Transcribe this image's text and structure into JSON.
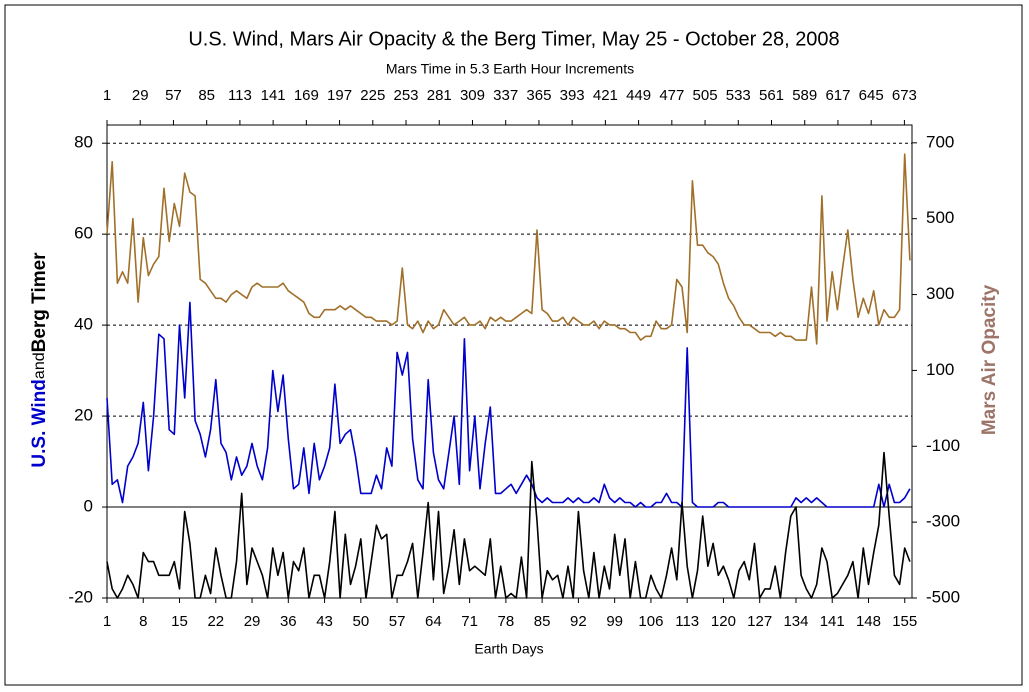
{
  "chart_data": {
    "type": "line",
    "title": "U.S. Wind, Mars Air Opacity & the Berg Timer, May 25 - October 28, 2008",
    "subtitle": "Mars Time in 5.3 Earth Hour Increments",
    "x_label": "Earth Days",
    "y_label": [
      "U.S. Wind",
      "and",
      "Berg Timer"
    ],
    "y2_label": "Mars Air Opacity",
    "xlim": [
      1,
      156.4
    ],
    "xticks": [
      1,
      8,
      15,
      22,
      29,
      36,
      43,
      50,
      57,
      64,
      71,
      78,
      85,
      92,
      99,
      106,
      113,
      120,
      127,
      134,
      141,
      148,
      155
    ],
    "x2lim": [
      1,
      679.4
    ],
    "x2ticks": [
      1,
      29,
      57,
      85,
      113,
      141,
      169,
      197,
      225,
      253,
      281,
      309,
      337,
      365,
      393,
      421,
      449,
      477,
      505,
      533,
      561,
      589,
      617,
      645,
      673
    ],
    "ylim": [
      -20,
      84
    ],
    "yticks": [
      -20,
      0,
      20,
      40,
      60,
      80
    ],
    "y2lim": [
      -500,
      747
    ],
    "y2ticks": [
      -500,
      -300,
      -100,
      100,
      300,
      500,
      700
    ],
    "grid": true,
    "x": [
      1,
      2,
      3,
      4,
      5,
      6,
      7,
      8,
      9,
      10,
      11,
      12,
      13,
      14,
      15,
      16,
      17,
      18,
      19,
      20,
      21,
      22,
      23,
      24,
      25,
      26,
      27,
      28,
      29,
      30,
      31,
      32,
      33,
      34,
      35,
      36,
      37,
      38,
      39,
      40,
      41,
      42,
      43,
      44,
      45,
      46,
      47,
      48,
      49,
      50,
      51,
      52,
      53,
      54,
      55,
      56,
      57,
      58,
      59,
      60,
      61,
      62,
      63,
      64,
      65,
      66,
      67,
      68,
      69,
      70,
      71,
      72,
      73,
      74,
      75,
      76,
      77,
      78,
      79,
      80,
      81,
      82,
      83,
      84,
      85,
      86,
      87,
      88,
      89,
      90,
      91,
      92,
      93,
      94,
      95,
      96,
      97,
      98,
      99,
      100,
      101,
      102,
      103,
      104,
      105,
      106,
      107,
      108,
      109,
      110,
      111,
      112,
      113,
      114,
      115,
      116,
      117,
      118,
      119,
      120,
      121,
      122,
      123,
      124,
      125,
      126,
      127,
      128,
      129,
      130,
      131,
      132,
      133,
      134,
      135,
      136,
      137,
      138,
      139,
      140,
      141,
      142,
      143,
      144,
      145,
      146,
      147,
      148,
      149,
      150,
      151,
      152,
      153,
      154,
      155,
      156
    ],
    "series": [
      {
        "color": "#a0702a",
        "axis": "y2",
        "values": [
          460,
          650,
          330,
          360,
          330,
          500,
          280,
          450,
          350,
          380,
          400,
          580,
          440,
          540,
          480,
          620,
          570,
          560,
          340,
          330,
          310,
          290,
          290,
          280,
          300,
          310,
          300,
          290,
          320,
          330,
          320,
          320,
          320,
          320,
          330,
          310,
          300,
          290,
          280,
          250,
          240,
          240,
          260,
          260,
          260,
          270,
          260,
          270,
          260,
          250,
          240,
          240,
          230,
          230,
          230,
          220,
          230,
          370,
          220,
          210,
          230,
          200,
          230,
          210,
          220,
          260,
          240,
          220,
          230,
          240,
          220,
          220,
          230,
          210,
          240,
          230,
          240,
          230,
          230,
          240,
          250,
          260,
          250,
          470,
          260,
          250,
          230,
          230,
          240,
          220,
          240,
          230,
          220,
          220,
          230,
          210,
          230,
          220,
          220,
          210,
          210,
          200,
          200,
          180,
          190,
          190,
          230,
          210,
          210,
          220,
          340,
          320,
          200,
          600,
          430,
          430,
          410,
          400,
          380,
          330,
          290,
          270,
          240,
          220,
          220,
          210,
          200,
          200,
          200,
          190,
          200,
          190,
          190,
          180,
          180,
          180,
          320,
          170,
          560,
          230,
          360,
          260,
          370,
          470,
          340,
          240,
          290,
          250,
          310,
          220,
          260,
          240,
          240,
          260,
          670,
          390
        ]
      },
      {
        "color": "#0000cc",
        "values": [
          24,
          5,
          6,
          1,
          9,
          11,
          14,
          23,
          8,
          20,
          38,
          37,
          17,
          16,
          40,
          24,
          45,
          19,
          16,
          11,
          17,
          28,
          14,
          12,
          6,
          11,
          7,
          9,
          14,
          9,
          6,
          13,
          30,
          21,
          29,
          15,
          4,
          5,
          13,
          3,
          14,
          6,
          9,
          13,
          27,
          14,
          16,
          17,
          11,
          3,
          3,
          3,
          7,
          4,
          13,
          9,
          34,
          29,
          34,
          15,
          6,
          4,
          28,
          12,
          6,
          4,
          12,
          20,
          5,
          37,
          8,
          20,
          4,
          14,
          22,
          3,
          3,
          4,
          5,
          3,
          5,
          7,
          5,
          2,
          1,
          2,
          1,
          1,
          1,
          2,
          1,
          2,
          1,
          1,
          2,
          1,
          5,
          2,
          1,
          2,
          1,
          1,
          0,
          1,
          0,
          0,
          1,
          1,
          3,
          1,
          1,
          0,
          35,
          1,
          0,
          0,
          0,
          0,
          1,
          1,
          0,
          0,
          0,
          0,
          0,
          0,
          0,
          0,
          0,
          0,
          0,
          0,
          0,
          2,
          1,
          2,
          1,
          2,
          1,
          0,
          0,
          0,
          0,
          0,
          0,
          0,
          0,
          0,
          0,
          5,
          0,
          5,
          1,
          1,
          2,
          4
        ]
      },
      {
        "color": "#000000",
        "values": [
          -12,
          -18,
          -20,
          -18,
          -15,
          -17,
          -20,
          -10,
          -12,
          -12,
          -15,
          -15,
          -15,
          -12,
          -18,
          -1,
          -8,
          -20,
          -20,
          -15,
          -19,
          -9,
          -15,
          -20,
          -20,
          -12,
          3,
          -17,
          -9,
          -12,
          -15,
          -20,
          -9,
          -15,
          -10,
          -20,
          -12,
          -14,
          -9,
          -20,
          -15,
          -15,
          -20,
          -12,
          -1,
          -20,
          -6,
          -17,
          -13,
          -7,
          -20,
          -12,
          -4,
          -7,
          -6,
          -20,
          -15,
          -15,
          -12,
          -8,
          -20,
          -10,
          1,
          -16,
          -1,
          -19,
          -13,
          -5,
          -17,
          -7,
          -14,
          -13,
          -14,
          -15,
          -7,
          -20,
          -13,
          -20,
          -19,
          -20,
          -11,
          -20,
          10,
          -3,
          -20,
          -14,
          -16,
          -15,
          -20,
          -13,
          -20,
          -1,
          -14,
          -20,
          -10,
          -20,
          -13,
          -18,
          -6,
          -15,
          -7,
          -20,
          -12,
          -20,
          -20,
          -15,
          -18,
          -20,
          -15,
          -9,
          -16,
          1,
          -13,
          -20,
          -14,
          -2,
          -13,
          -8,
          -15,
          -13,
          -16,
          -20,
          -14,
          -12,
          -16,
          -8,
          -20,
          -18,
          -18,
          -13,
          -20,
          -10,
          -2,
          0,
          -15,
          -18,
          -20,
          -17,
          -9,
          -12,
          -20,
          -19,
          -17,
          -15,
          -12,
          -20,
          -9,
          -17,
          -10,
          -4,
          12,
          -2,
          -15,
          -17,
          -9,
          -12
        ]
      }
    ]
  }
}
